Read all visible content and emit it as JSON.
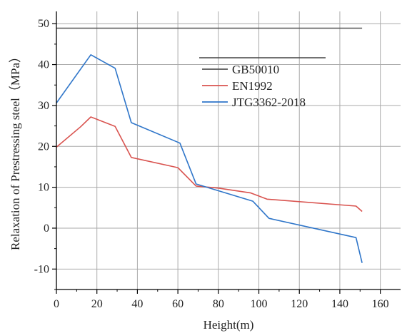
{
  "chart_data": {
    "type": "line",
    "xlabel": "Height(m)",
    "ylabel": "Relaxation of  Prestressing steel（MPa）",
    "xlim": [
      0,
      170
    ],
    "ylim": [
      -15,
      53
    ],
    "x_ticks": [
      0,
      20,
      40,
      60,
      80,
      100,
      120,
      140,
      160
    ],
    "y_ticks": [
      -10,
      0,
      10,
      20,
      30,
      40,
      50
    ],
    "grid": true,
    "legend_position": "top-right",
    "series": [
      {
        "name": "GB50010",
        "color": "#555555",
        "x": [
          0,
          151
        ],
        "y": [
          48.9,
          48.9
        ]
      },
      {
        "name": "EN1992",
        "color": "#d9534f",
        "x": [
          0,
          12,
          17,
          29,
          37,
          60,
          69,
          80,
          96,
          104,
          148,
          151
        ],
        "y": [
          19.8,
          24.8,
          27.2,
          24.9,
          17.3,
          14.8,
          10.3,
          9.8,
          8.6,
          7.1,
          5.4,
          4.1
        ]
      },
      {
        "name": "JTG3362-2018",
        "color": "#2e75c9",
        "x": [
          0,
          17,
          29,
          37,
          61,
          69,
          97,
          105,
          148,
          151
        ],
        "y": [
          30.6,
          42.4,
          39.1,
          25.8,
          20.8,
          10.8,
          6.6,
          2.4,
          -2.3,
          -8.5
        ]
      }
    ]
  }
}
